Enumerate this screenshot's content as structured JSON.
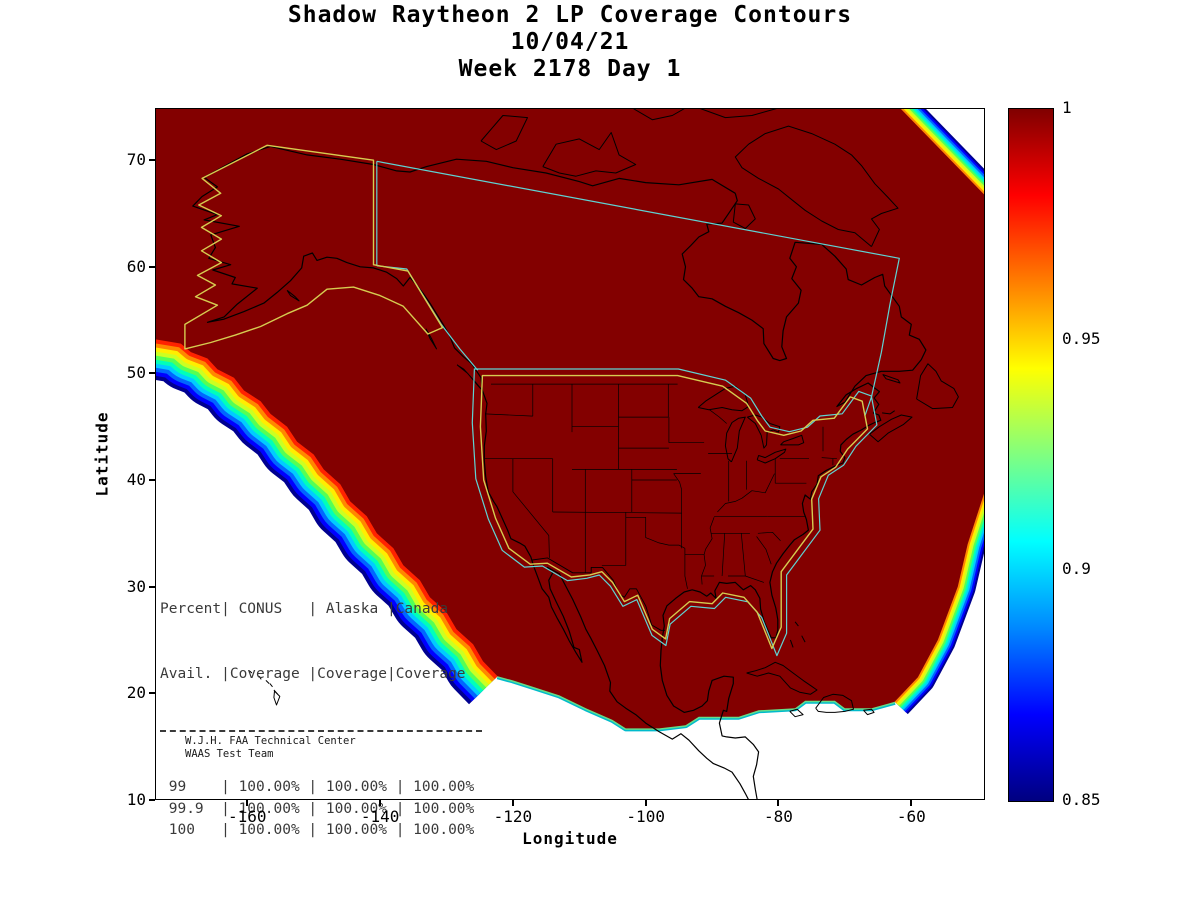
{
  "title": {
    "line1": "Shadow Raytheon 2 LP Coverage Contours",
    "line2": "10/04/21",
    "line3": "Week 2178 Day 1"
  },
  "axes": {
    "xlabel": "Longitude",
    "ylabel": "Latitude",
    "x_ticks": [
      "-160",
      "-140",
      "-120",
      "-100",
      "-80",
      "-60"
    ],
    "y_ticks": [
      "70",
      "60",
      "50",
      "40",
      "30",
      "20",
      "10"
    ]
  },
  "colorbar": {
    "max": 1,
    "min": 0.85,
    "tick_labels": [
      "1",
      "0.95",
      "0.9",
      "0.85"
    ]
  },
  "coverage_table": {
    "header_line1": "Percent| CONUS   | Alaska |Canada",
    "header_line2": "Avail. |Coverage |Coverage|Coverage",
    "row_lines": [
      " 99    | 100.00% | 100.00% | 100.00%",
      " 99.9  | 100.00% | 100.00% | 100.00%",
      " 100   | 100.00% | 100.00% | 100.00%"
    ]
  },
  "credit": {
    "line1": "W.J.H. FAA Technical Center",
    "line2": "WAAS Test Team"
  },
  "colors": {
    "interior": "#830000",
    "conus_alaska_outline": "#d6cc50",
    "service_boundary": "#5fd3d3",
    "coastline": "#000000"
  },
  "chart_data": {
    "type": "contour",
    "title": "Shadow Raytheon 2 LP Coverage Contours",
    "subtitle_lines": [
      "10/04/21",
      "Week 2178 Day 1"
    ],
    "xlabel": "Longitude",
    "ylabel": "Latitude",
    "xlim": [
      -174,
      -48.6
    ],
    "ylim": [
      10,
      75
    ],
    "x_ticks": [
      -160,
      -140,
      -120,
      -100,
      -80,
      -60
    ],
    "y_ticks": [
      10,
      20,
      30,
      40,
      50,
      60,
      70
    ],
    "colorbar": {
      "min": 0.85,
      "max": 1,
      "tick_values": [
        1,
        0.95,
        0.9,
        0.85
      ],
      "colormap": "jet"
    },
    "interior_value": 1.0,
    "description": "Filled LP coverage contours over North America: interior coverage value 1.0 (dark red) with a 0.85-1.0 jet-colormap fringe along the coverage boundary; yellow outlines mark the CONUS and Alaska regions; cyan lines mark the Canada service boundary.",
    "availability_table": {
      "columns": [
        "Percent Avail.",
        "CONUS Coverage",
        "Alaska Coverage",
        "Canada Coverage"
      ],
      "rows": [
        [
          "99",
          "100.00%",
          "100.00%",
          "100.00%"
        ],
        [
          "99.9",
          "100.00%",
          "100.00%",
          "100.00%"
        ],
        [
          "100",
          "100.00%",
          "100.00%",
          "100.00%"
        ]
      ]
    }
  }
}
